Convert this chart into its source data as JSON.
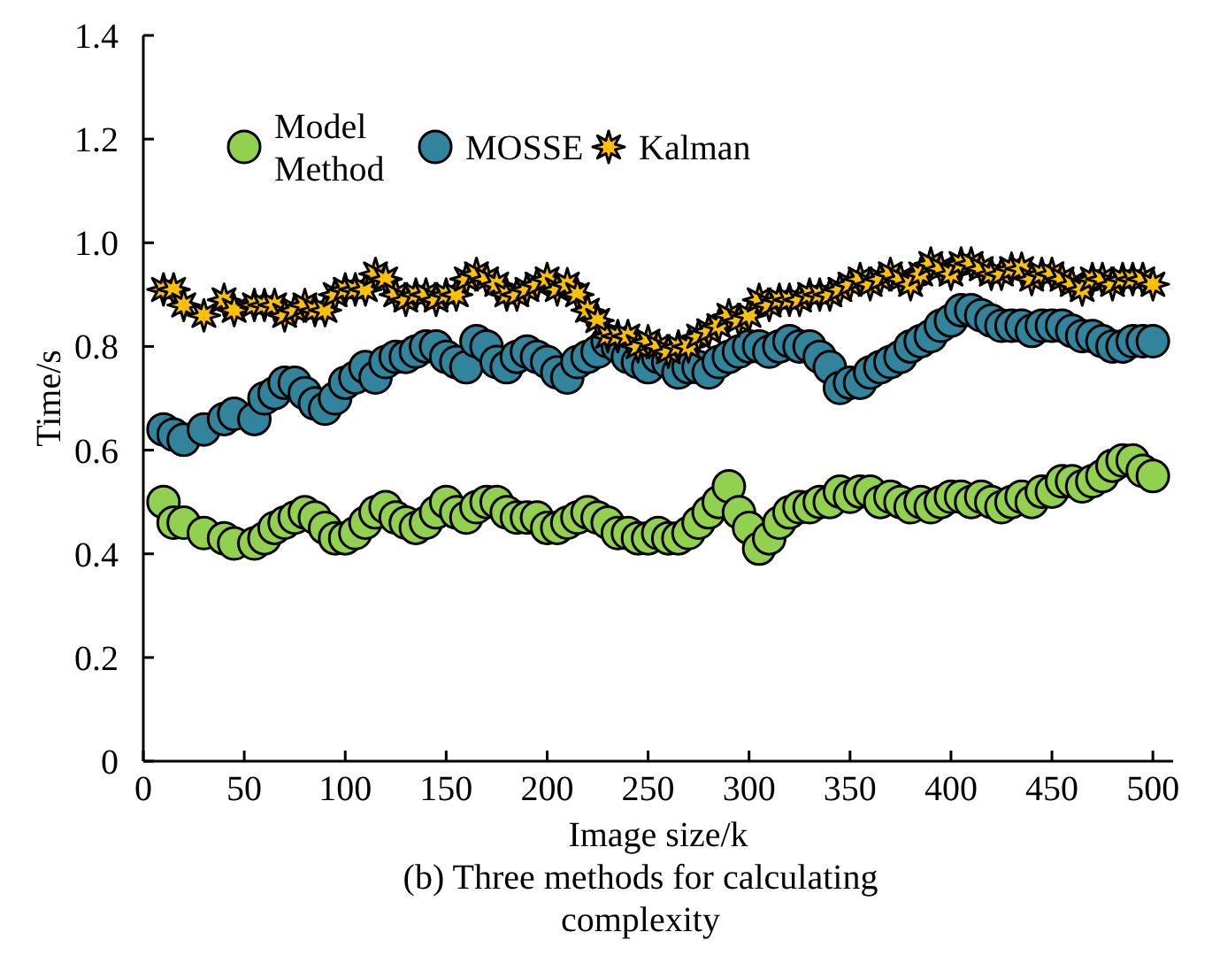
{
  "chart_data": {
    "type": "scatter",
    "xlabel": "Image size/k",
    "ylabel": "Time/s",
    "annotations": [
      "(b) Three methods for calculating complexity"
    ],
    "xlim": [
      0,
      510
    ],
    "ylim": [
      0,
      1.4
    ],
    "xticks": [
      0,
      50,
      100,
      150,
      200,
      250,
      300,
      350,
      400,
      450,
      500
    ],
    "yticks": [
      0,
      0.2,
      0.4,
      0.6,
      0.8,
      {
        "value": 1,
        "label": "1.0"
      },
      1.2,
      1.4
    ],
    "grid": false,
    "legend": "top left",
    "x": [
      10,
      15,
      20,
      30,
      40,
      45,
      55,
      60,
      65,
      70,
      75,
      80,
      85,
      90,
      95,
      100,
      105,
      110,
      115,
      120,
      125,
      130,
      135,
      140,
      145,
      150,
      155,
      160,
      165,
      170,
      175,
      180,
      185,
      190,
      195,
      200,
      205,
      210,
      215,
      220,
      225,
      230,
      235,
      240,
      245,
      250,
      255,
      260,
      265,
      270,
      275,
      280,
      285,
      290,
      295,
      300,
      305,
      310,
      315,
      320,
      325,
      330,
      335,
      340,
      345,
      350,
      355,
      360,
      365,
      370,
      375,
      380,
      385,
      390,
      395,
      400,
      405,
      410,
      415,
      420,
      425,
      430,
      435,
      440,
      445,
      450,
      455,
      460,
      465,
      470,
      475,
      480,
      485,
      490,
      495,
      500
    ],
    "series": [
      {
        "name": "Model Method",
        "color": "#92d050",
        "marker": "circle",
        "values": [
          0.5,
          0.46,
          0.46,
          0.44,
          0.43,
          0.42,
          0.42,
          0.43,
          0.45,
          0.46,
          0.47,
          0.48,
          0.47,
          0.45,
          0.43,
          0.43,
          0.44,
          0.46,
          0.48,
          0.49,
          0.47,
          0.46,
          0.45,
          0.46,
          0.48,
          0.5,
          0.48,
          0.47,
          0.49,
          0.5,
          0.5,
          0.48,
          0.47,
          0.47,
          0.47,
          0.45,
          0.45,
          0.46,
          0.47,
          0.48,
          0.47,
          0.46,
          0.44,
          0.44,
          0.43,
          0.43,
          0.44,
          0.43,
          0.43,
          0.44,
          0.46,
          0.48,
          0.5,
          0.53,
          0.48,
          0.45,
          0.41,
          0.43,
          0.46,
          0.48,
          0.49,
          0.49,
          0.5,
          0.5,
          0.52,
          0.51,
          0.52,
          0.52,
          0.5,
          0.51,
          0.5,
          0.49,
          0.5,
          0.49,
          0.5,
          0.51,
          0.51,
          0.5,
          0.51,
          0.5,
          0.49,
          0.5,
          0.51,
          0.5,
          0.52,
          0.52,
          0.54,
          0.54,
          0.53,
          0.54,
          0.55,
          0.57,
          0.58,
          0.58,
          0.56,
          0.55
        ]
      },
      {
        "name": "MOSSE",
        "color": "#31849b",
        "marker": "circle",
        "values": [
          0.64,
          0.63,
          0.62,
          0.64,
          0.66,
          0.67,
          0.66,
          0.7,
          0.71,
          0.73,
          0.73,
          0.71,
          0.69,
          0.68,
          0.7,
          0.73,
          0.74,
          0.76,
          0.74,
          0.77,
          0.78,
          0.78,
          0.79,
          0.8,
          0.8,
          0.78,
          0.77,
          0.76,
          0.81,
          0.8,
          0.77,
          0.76,
          0.78,
          0.79,
          0.78,
          0.77,
          0.75,
          0.74,
          0.77,
          0.78,
          0.79,
          0.81,
          0.8,
          0.78,
          0.77,
          0.76,
          0.78,
          0.77,
          0.75,
          0.76,
          0.76,
          0.75,
          0.77,
          0.78,
          0.79,
          0.8,
          0.8,
          0.79,
          0.8,
          0.81,
          0.8,
          0.8,
          0.78,
          0.76,
          0.72,
          0.73,
          0.73,
          0.75,
          0.76,
          0.77,
          0.78,
          0.8,
          0.81,
          0.82,
          0.84,
          0.85,
          0.87,
          0.87,
          0.86,
          0.85,
          0.84,
          0.84,
          0.84,
          0.83,
          0.84,
          0.84,
          0.84,
          0.83,
          0.82,
          0.82,
          0.81,
          0.8,
          0.8,
          0.81,
          0.81,
          0.81
        ]
      },
      {
        "name": "Kalman",
        "color": "#ffc000",
        "marker": "star",
        "values": [
          0.91,
          0.91,
          0.88,
          0.86,
          0.89,
          0.87,
          0.88,
          0.88,
          0.88,
          0.86,
          0.87,
          0.88,
          0.87,
          0.87,
          0.9,
          0.91,
          0.91,
          0.91,
          0.94,
          0.93,
          0.9,
          0.89,
          0.9,
          0.9,
          0.89,
          0.9,
          0.9,
          0.93,
          0.94,
          0.93,
          0.92,
          0.9,
          0.9,
          0.91,
          0.92,
          0.93,
          0.91,
          0.92,
          0.9,
          0.87,
          0.85,
          0.82,
          0.82,
          0.82,
          0.8,
          0.81,
          0.8,
          0.79,
          0.8,
          0.8,
          0.82,
          0.83,
          0.84,
          0.86,
          0.85,
          0.86,
          0.89,
          0.88,
          0.89,
          0.89,
          0.89,
          0.9,
          0.9,
          0.9,
          0.91,
          0.92,
          0.93,
          0.92,
          0.93,
          0.94,
          0.93,
          0.92,
          0.94,
          0.96,
          0.95,
          0.94,
          0.96,
          0.96,
          0.95,
          0.94,
          0.94,
          0.95,
          0.95,
          0.93,
          0.94,
          0.94,
          0.93,
          0.92,
          0.91,
          0.93,
          0.93,
          0.92,
          0.93,
          0.93,
          0.93,
          0.92
        ]
      }
    ]
  }
}
